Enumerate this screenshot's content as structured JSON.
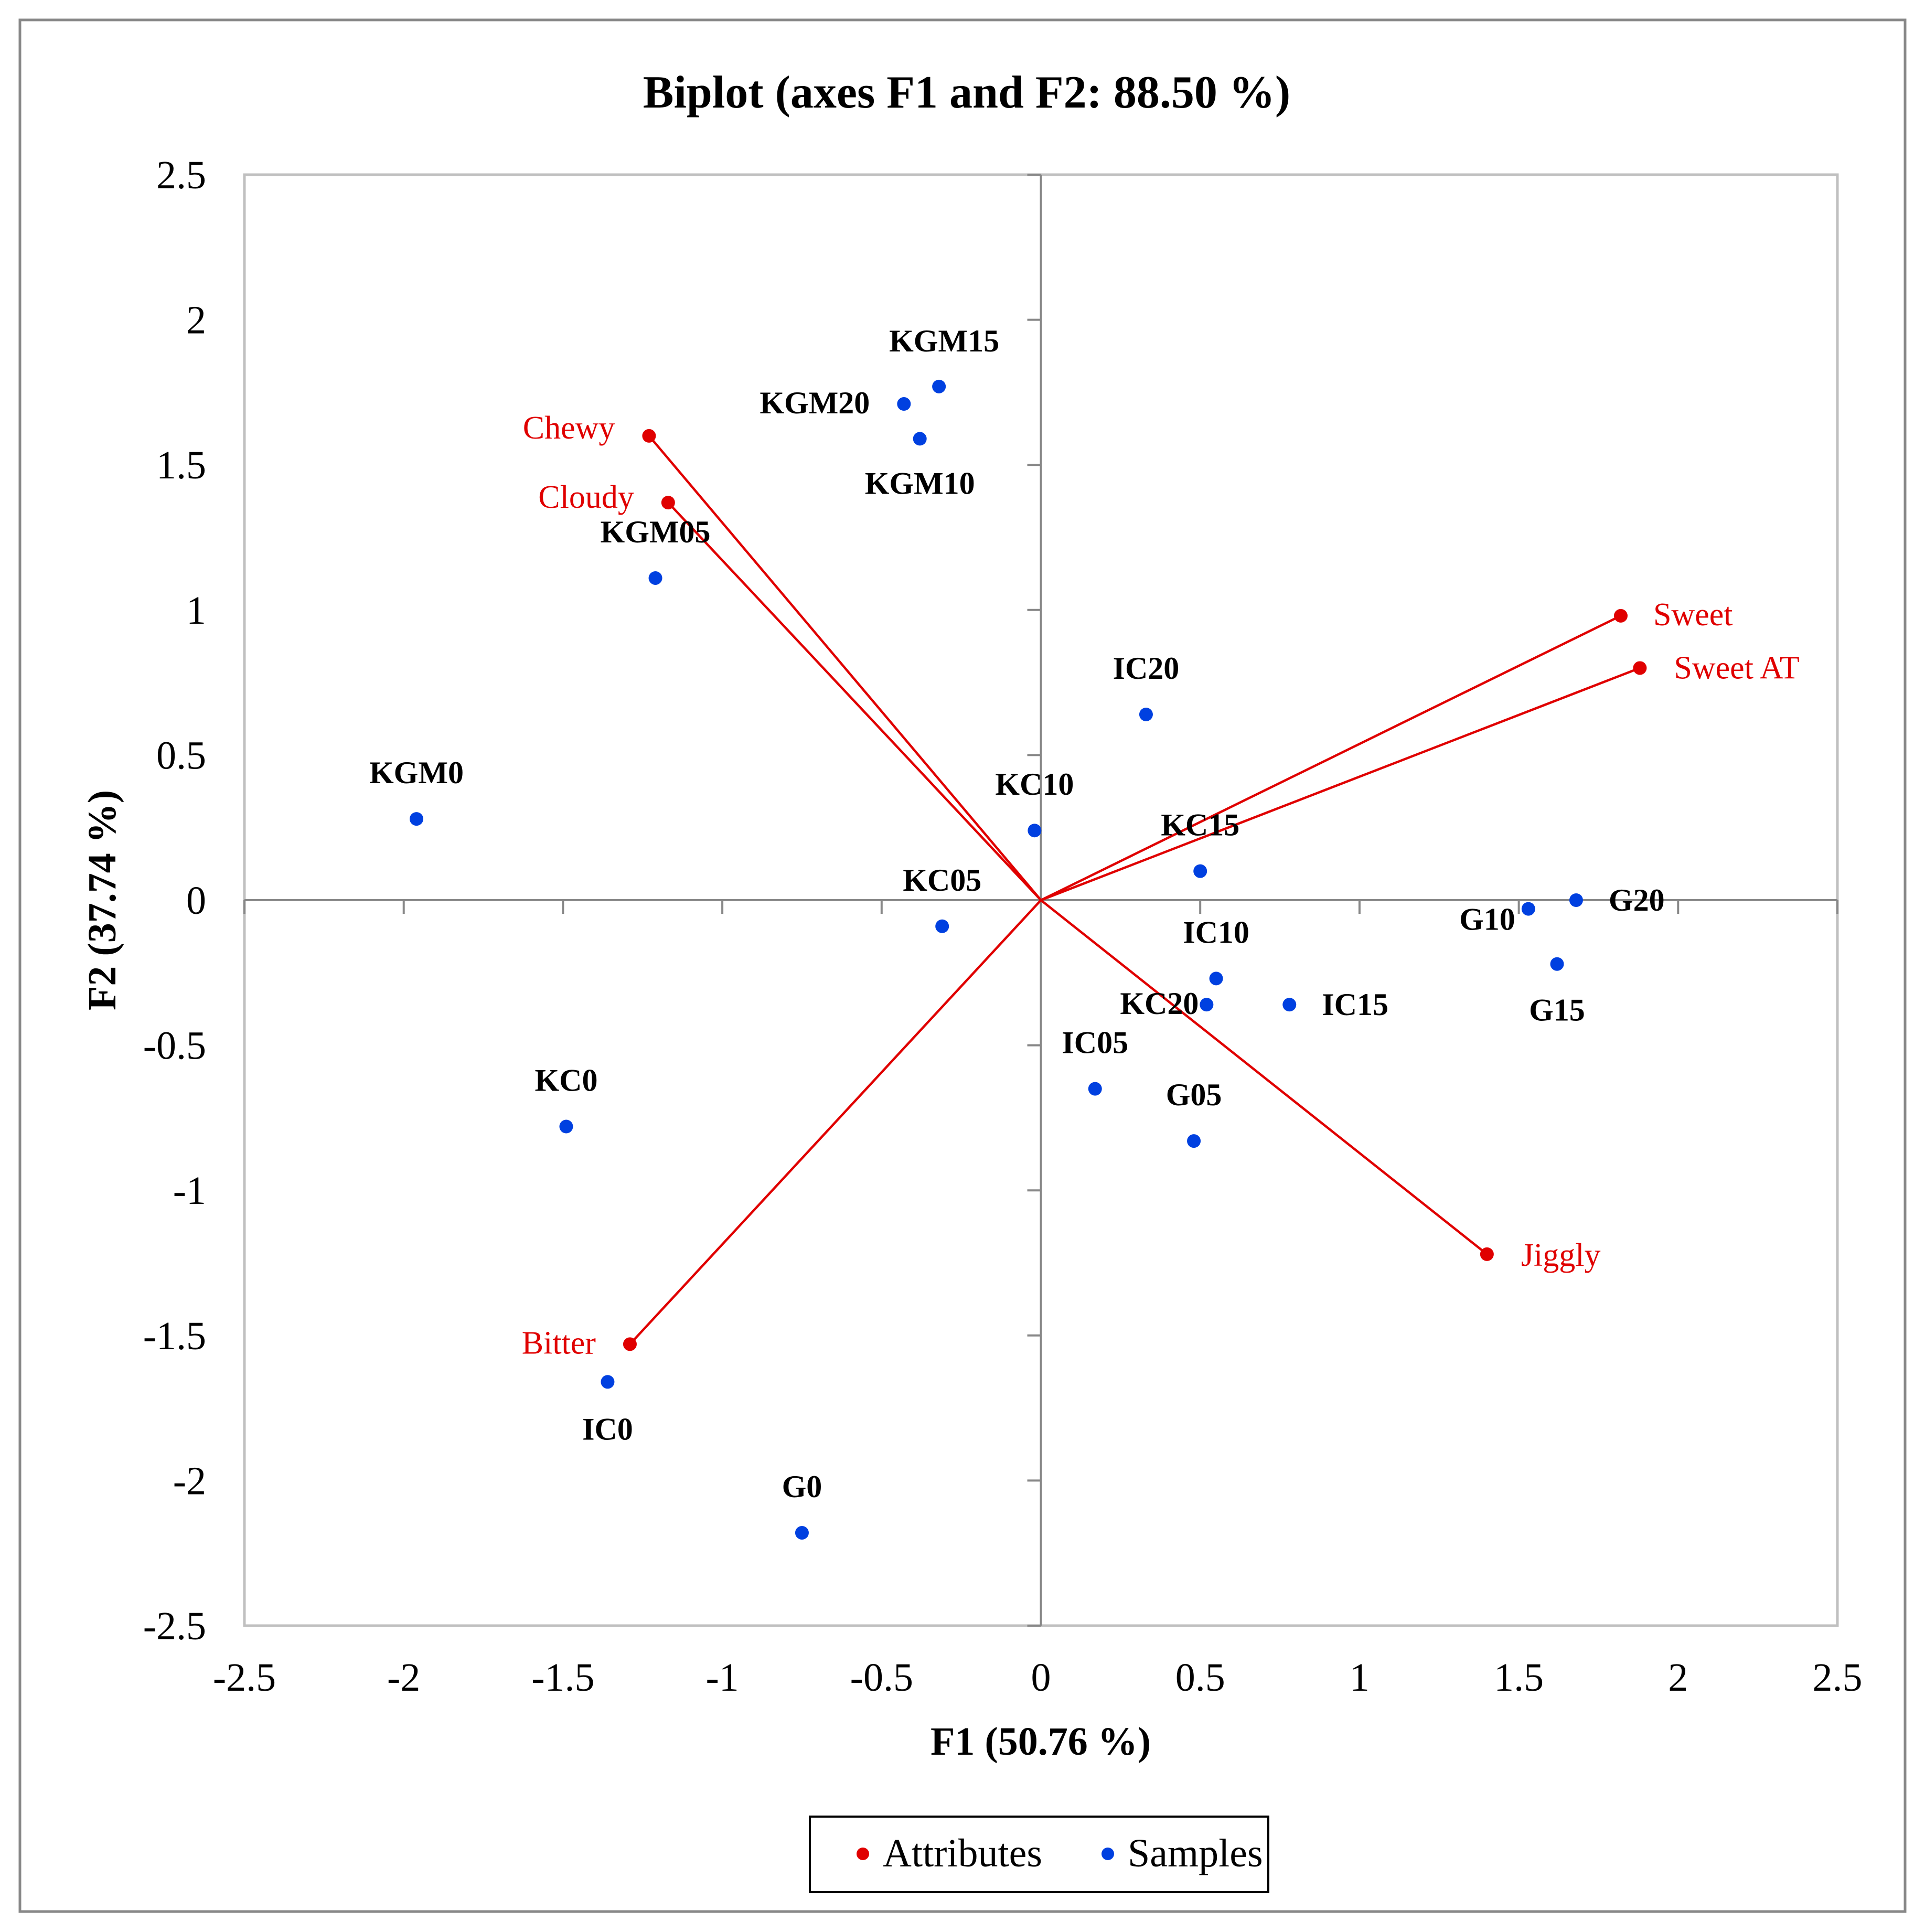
{
  "chart_data": {
    "type": "scatter",
    "title": "Biplot (axes F1 and F2: 88.50 %)",
    "xlabel": "F1 (50.76 %)",
    "ylabel": "F2 (37.74 %)",
    "xlim": [
      -2.5,
      2.5
    ],
    "ylim": [
      -2.5,
      2.5
    ],
    "x_ticks": [
      "-2.5",
      "-2",
      "-1.5",
      "-1",
      "-0.5",
      "0",
      "0.5",
      "1",
      "1.5",
      "2",
      "2.5"
    ],
    "y_ticks": [
      "2.5",
      "2",
      "1.5",
      "1",
      "0.5",
      "0",
      "-0.5",
      "-1",
      "-1.5",
      "-2",
      "-2.5"
    ],
    "grid": false,
    "legend_position": "bottom",
    "colors": {
      "attributes": "#e00000",
      "samples": "#0040e0"
    },
    "series": [
      {
        "name": "Attributes",
        "vectors_from_origin": true,
        "points": [
          {
            "label": "Chewy",
            "x": -1.23,
            "y": 1.6
          },
          {
            "label": "Cloudy",
            "x": -1.17,
            "y": 1.37
          },
          {
            "label": "Sweet",
            "x": 1.82,
            "y": 0.98
          },
          {
            "label": "Sweet AT",
            "x": 1.88,
            "y": 0.8
          },
          {
            "label": "Jiggly",
            "x": 1.4,
            "y": -1.22
          },
          {
            "label": "Bitter",
            "x": -1.29,
            "y": -1.53
          }
        ]
      },
      {
        "name": "Samples",
        "points": [
          {
            "label": "KGM15",
            "x": -0.32,
            "y": 1.77
          },
          {
            "label": "KGM20",
            "x": -0.43,
            "y": 1.71
          },
          {
            "label": "KGM10",
            "x": -0.38,
            "y": 1.59
          },
          {
            "label": "KGM05",
            "x": -1.21,
            "y": 1.11
          },
          {
            "label": "KGM0",
            "x": -1.96,
            "y": 0.28
          },
          {
            "label": "IC20",
            "x": 0.33,
            "y": 0.64
          },
          {
            "label": "KC10",
            "x": -0.02,
            "y": 0.24
          },
          {
            "label": "KC15",
            "x": 0.5,
            "y": 0.1
          },
          {
            "label": "KC05",
            "x": -0.31,
            "y": -0.09
          },
          {
            "label": "G10",
            "x": 1.53,
            "y": -0.03
          },
          {
            "label": "G20",
            "x": 1.68,
            "y": 0.0
          },
          {
            "label": "G15",
            "x": 1.62,
            "y": -0.22
          },
          {
            "label": "IC10",
            "x": 0.55,
            "y": -0.27
          },
          {
            "label": "KC20",
            "x": 0.52,
            "y": -0.36
          },
          {
            "label": "IC15",
            "x": 0.78,
            "y": -0.36
          },
          {
            "label": "IC05",
            "x": 0.17,
            "y": -0.65
          },
          {
            "label": "G05",
            "x": 0.48,
            "y": -0.83
          },
          {
            "label": "KC0",
            "x": -1.49,
            "y": -0.78
          },
          {
            "label": "IC0",
            "x": -1.36,
            "y": -1.66
          },
          {
            "label": "G0",
            "x": -0.75,
            "y": -2.18
          }
        ]
      }
    ]
  }
}
